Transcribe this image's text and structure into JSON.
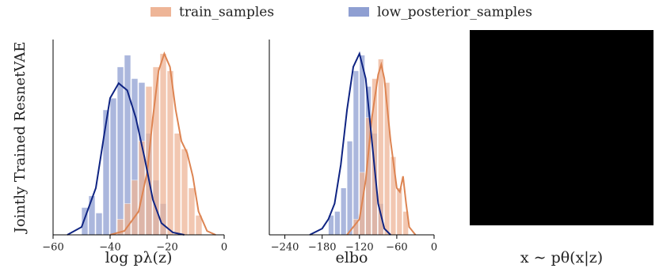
{
  "chart_data": [
    {
      "type": "histogram",
      "ylabel": "Jointly Trained ResnetVAE",
      "xlabel": "log pλ(z)",
      "xlim": [
        -60,
        0
      ],
      "ylim": [
        0,
        250
      ],
      "xticks": [
        {
          "value": -60,
          "label": "−60"
        },
        {
          "value": -40,
          "label": "−40"
        },
        {
          "value": -20,
          "label": "−20"
        },
        0
      ],
      "series": [
        {
          "name": "train_samples",
          "color": "#eeb597",
          "line_color": "#dd8452",
          "bins": [
            -37.5,
            -35,
            -32.5,
            -30,
            -27.5,
            -25,
            -22.5,
            -20,
            -17.5,
            -15,
            -12.5,
            -10,
            -7.5
          ],
          "values": [
            20,
            40,
            70,
            120,
            190,
            215,
            232,
            210,
            130,
            110,
            60,
            25
          ],
          "kde_x": [
            -40,
            -35,
            -30,
            -27,
            -25,
            -23,
            -21,
            -19,
            -17,
            -15,
            -13,
            -11,
            -9,
            -6,
            -3
          ],
          "kde_y": [
            0,
            5,
            30,
            80,
            150,
            210,
            232,
            215,
            160,
            120,
            105,
            75,
            30,
            5,
            0
          ]
        },
        {
          "name": "low_posterior_samples",
          "color": "#8f9fd2",
          "line_color": "#0f2483",
          "bins": [
            -50,
            -47.5,
            -45,
            -42.5,
            -40,
            -37.5,
            -35,
            -32.5,
            -30,
            -27.5,
            -25,
            -22.5,
            -20
          ],
          "values": [
            35,
            50,
            28,
            160,
            175,
            215,
            230,
            200,
            195,
            130,
            70,
            40
          ],
          "kde_x": [
            -55,
            -50,
            -45,
            -42,
            -40,
            -37,
            -34,
            -31,
            -28,
            -25,
            -22,
            -18,
            -14
          ],
          "kde_y": [
            0,
            10,
            60,
            130,
            175,
            194,
            185,
            150,
            100,
            45,
            15,
            3,
            0
          ]
        }
      ]
    },
    {
      "type": "histogram",
      "xlabel": "elbo",
      "xlim": [
        -265,
        0
      ],
      "ylim": [
        0,
        250
      ],
      "xticks": [
        {
          "value": -240,
          "label": "−240"
        },
        {
          "value": -180,
          "label": "−180"
        },
        {
          "value": -120,
          "label": "−120"
        },
        {
          "value": -60,
          "label": "−60"
        },
        0
      ],
      "series": [
        {
          "name": "train_samples",
          "color": "#eeb597",
          "line_color": "#dd8452",
          "bins": [
            -130,
            -120,
            -110,
            -100,
            -90,
            -80,
            -70,
            -60,
            -50,
            -40
          ],
          "values": [
            20,
            80,
            150,
            200,
            225,
            195,
            100,
            60,
            30
          ],
          "kde_x": [
            -140,
            -120,
            -110,
            -100,
            -90,
            -85,
            -80,
            -70,
            -60,
            -55,
            -50,
            -45,
            -40,
            -30
          ],
          "kde_y": [
            0,
            20,
            70,
            150,
            205,
            218,
            200,
            120,
            60,
            55,
            75,
            40,
            10,
            0
          ]
        },
        {
          "name": "low_posterior_samples",
          "color": "#8f9fd2",
          "line_color": "#0f2483",
          "bins": [
            -170,
            -160,
            -150,
            -140,
            -130,
            -120,
            -110,
            -100,
            -90,
            -80
          ],
          "values": [
            25,
            30,
            60,
            120,
            210,
            230,
            190,
            130,
            40
          ],
          "kde_x": [
            -200,
            -180,
            -170,
            -160,
            -150,
            -140,
            -130,
            -120,
            -110,
            -100,
            -90,
            -80,
            -70
          ],
          "kde_y": [
            0,
            8,
            20,
            40,
            90,
            160,
            215,
            232,
            200,
            120,
            40,
            8,
            0
          ]
        }
      ]
    }
  ],
  "image": {
    "caption": "x ∼ pθ(x|z)"
  }
}
